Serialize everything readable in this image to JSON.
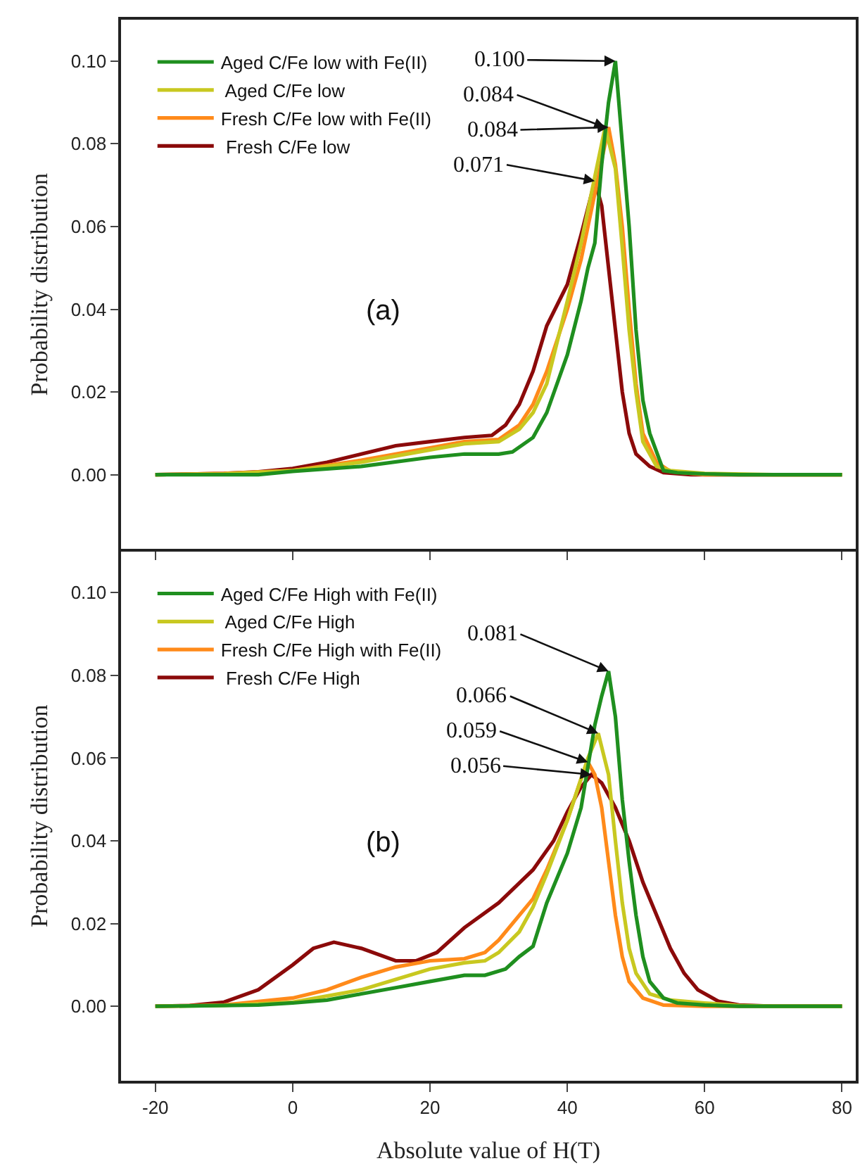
{
  "chart_data": [
    {
      "type": "line",
      "ylabel": "Probability distribution",
      "xlim": [
        -25,
        82
      ],
      "ylim": [
        -0.018,
        0.11
      ],
      "xticks": [
        -20,
        0,
        20,
        40,
        60,
        80
      ],
      "yticks": [
        {
          "value": 0,
          "label": "0.00"
        },
        {
          "value": 0.02,
          "label": "0.02"
        },
        {
          "value": 0.04,
          "label": "0.04"
        },
        {
          "value": 0.06,
          "label": "0.06"
        },
        {
          "value": 0.08,
          "label": "0.08"
        },
        {
          "value": 0.1,
          "label": "0.10"
        }
      ],
      "tick_labels": "y",
      "grid": false,
      "legend": "top left",
      "line_style": "solid",
      "annotations": [
        "(a)",
        {
          "text": "0.100",
          "x": 47,
          "y": 0.1
        },
        {
          "text": "0.084",
          "x": 45.5,
          "y": 0.084
        },
        {
          "text": "0.084",
          "x": 46,
          "y": 0.084
        },
        {
          "text": "0.071",
          "x": 44,
          "y": 0.071
        }
      ],
      "series": [
        {
          "name": "Aged C/Fe low with Fe(II)",
          "color": "#1f8f1f",
          "x": [
            -20,
            -5,
            0,
            10,
            20,
            25,
            30,
            32,
            35,
            37,
            40,
            42,
            43,
            44,
            45,
            46,
            47,
            48,
            49,
            50,
            51,
            52,
            54,
            56,
            60,
            65,
            80
          ],
          "values": [
            0,
            0,
            0.0008,
            0.002,
            0.0042,
            0.005,
            0.005,
            0.0055,
            0.009,
            0.015,
            0.029,
            0.042,
            0.05,
            0.056,
            0.075,
            0.09,
            0.1,
            0.08,
            0.06,
            0.035,
            0.018,
            0.01,
            0.001,
            0.0005,
            0.0002,
            0,
            0
          ]
        },
        {
          "name": " Aged C/Fe low",
          "color": "#c8c820",
          "x": [
            -20,
            -10,
            0,
            10,
            20,
            25,
            30,
            33,
            35,
            37,
            40,
            42,
            44,
            45.5,
            47,
            48,
            49,
            50,
            51,
            53,
            55,
            60,
            70,
            80
          ],
          "values": [
            0,
            0.0002,
            0.001,
            0.003,
            0.006,
            0.0075,
            0.008,
            0.011,
            0.015,
            0.022,
            0.042,
            0.056,
            0.072,
            0.084,
            0.074,
            0.055,
            0.035,
            0.02,
            0.008,
            0.002,
            0.001,
            0.0003,
            0,
            0
          ]
        },
        {
          "name": "Fresh C/Fe low with Fe(II)",
          "color": "#ff8a1a",
          "x": [
            -20,
            -10,
            0,
            10,
            20,
            25,
            30,
            33,
            35,
            37,
            40,
            42,
            44,
            46,
            47,
            48,
            49,
            50,
            51,
            53,
            55,
            60,
            80
          ],
          "values": [
            0,
            0.0003,
            0.001,
            0.0035,
            0.0065,
            0.008,
            0.0085,
            0.012,
            0.017,
            0.025,
            0.04,
            0.052,
            0.068,
            0.084,
            0.075,
            0.06,
            0.04,
            0.022,
            0.01,
            0.003,
            0.0008,
            0,
            0
          ]
        },
        {
          "name": " Fresh C/Fe low",
          "color": "#8b0a0a",
          "x": [
            -20,
            -10,
            -5,
            0,
            5,
            10,
            15,
            20,
            25,
            29,
            31,
            33,
            35,
            37,
            40,
            42,
            44,
            45,
            46,
            47,
            48,
            49,
            50,
            52,
            54,
            58,
            80
          ],
          "values": [
            0,
            0.0003,
            0.0007,
            0.0015,
            0.003,
            0.005,
            0.007,
            0.008,
            0.009,
            0.0095,
            0.012,
            0.017,
            0.025,
            0.036,
            0.046,
            0.058,
            0.071,
            0.065,
            0.05,
            0.035,
            0.02,
            0.01,
            0.005,
            0.002,
            0.0005,
            0,
            0
          ]
        }
      ]
    },
    {
      "type": "line",
      "xlabel": "Absolute value of H(T)",
      "ylabel": "Probability distribution",
      "xlim": [
        -25,
        82
      ],
      "ylim": [
        -0.018,
        0.11
      ],
      "xticks": [
        -20,
        0,
        20,
        40,
        60,
        80
      ],
      "yticks": [
        {
          "value": 0,
          "label": "0.00"
        },
        {
          "value": 0.02,
          "label": "0.02"
        },
        {
          "value": 0.04,
          "label": "0.04"
        },
        {
          "value": 0.06,
          "label": "0.06"
        },
        {
          "value": 0.08,
          "label": "0.08"
        },
        {
          "value": 0.1,
          "label": "0.10"
        }
      ],
      "grid": false,
      "legend": "top left",
      "line_style": "solid",
      "annotations": [
        "(b)",
        {
          "text": "0.081",
          "x": 46,
          "y": 0.081
        },
        {
          "text": "0.066",
          "x": 44.5,
          "y": 0.066
        },
        {
          "text": "0.059",
          "x": 43,
          "y": 0.059
        },
        {
          "text": "0.056",
          "x": 43.5,
          "y": 0.056
        }
      ],
      "series": [
        {
          "name": "Aged C/Fe High with Fe(II)",
          "color": "#1f8f1f",
          "x": [
            -20,
            -5,
            0,
            5,
            10,
            15,
            20,
            25,
            28,
            31,
            33,
            35,
            37,
            40,
            42,
            43,
            44,
            45,
            46,
            47,
            48,
            49,
            50,
            51,
            52,
            54,
            56,
            60,
            65,
            80
          ],
          "values": [
            0,
            0.0003,
            0.0008,
            0.0015,
            0.003,
            0.0045,
            0.006,
            0.0075,
            0.0075,
            0.009,
            0.012,
            0.0145,
            0.025,
            0.037,
            0.048,
            0.058,
            0.068,
            0.075,
            0.081,
            0.07,
            0.05,
            0.035,
            0.022,
            0.012,
            0.006,
            0.002,
            0.0008,
            0.0003,
            0,
            0
          ]
        },
        {
          "name": " Aged C/Fe High",
          "color": "#c8c820",
          "x": [
            -20,
            -10,
            0,
            10,
            20,
            25,
            28,
            30,
            33,
            35,
            37,
            40,
            42,
            43,
            44.5,
            46,
            47,
            48,
            49,
            50,
            52,
            55,
            60,
            65,
            70,
            80
          ],
          "values": [
            0,
            0.0002,
            0.001,
            0.004,
            0.009,
            0.0105,
            0.011,
            0.013,
            0.018,
            0.024,
            0.032,
            0.045,
            0.055,
            0.06,
            0.066,
            0.056,
            0.04,
            0.025,
            0.014,
            0.008,
            0.003,
            0.0015,
            0.0008,
            0.0002,
            0,
            0
          ]
        },
        {
          "name": "Fresh C/Fe High with Fe(II)",
          "color": "#ff8a1a",
          "x": [
            -20,
            -10,
            0,
            5,
            10,
            15,
            20,
            25,
            28,
            30,
            33,
            35,
            37,
            40,
            42,
            43,
            44,
            45,
            46,
            47,
            48,
            49,
            51,
            54,
            60,
            80
          ],
          "values": [
            0,
            0.0003,
            0.002,
            0.004,
            0.007,
            0.0095,
            0.011,
            0.0115,
            0.013,
            0.016,
            0.022,
            0.026,
            0.033,
            0.045,
            0.055,
            0.059,
            0.056,
            0.048,
            0.035,
            0.022,
            0.012,
            0.006,
            0.002,
            0.0003,
            0,
            0
          ]
        },
        {
          "name": " Fresh C/Fe High",
          "color": "#8b0a0a",
          "x": [
            -20,
            -15,
            -10,
            -5,
            0,
            3,
            6,
            10,
            15,
            18,
            21,
            25,
            30,
            35,
            38,
            40,
            42,
            43.5,
            45,
            47,
            49,
            51,
            53,
            55,
            57,
            59,
            62,
            65,
            70,
            80
          ],
          "values": [
            0,
            0.0002,
            0.001,
            0.004,
            0.01,
            0.014,
            0.0155,
            0.014,
            0.011,
            0.011,
            0.013,
            0.019,
            0.025,
            0.033,
            0.04,
            0.047,
            0.053,
            0.056,
            0.054,
            0.048,
            0.04,
            0.03,
            0.022,
            0.014,
            0.008,
            0.004,
            0.0012,
            0.0003,
            0,
            0
          ]
        }
      ]
    }
  ]
}
